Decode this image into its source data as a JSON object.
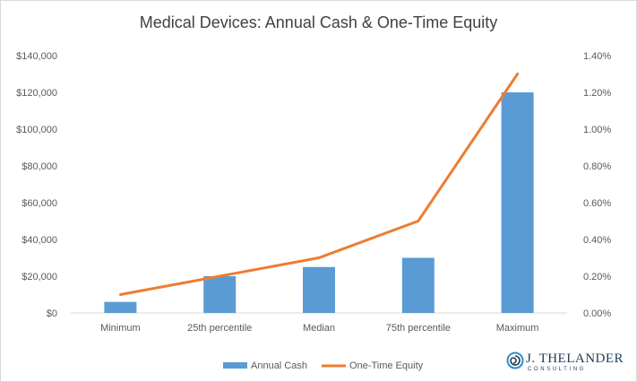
{
  "chart_data": {
    "type": "bar",
    "title": "Medical Devices: Annual Cash & One-Time Equity",
    "categories": [
      "Minimum",
      "25th percentile",
      "Median",
      "75th percentile",
      "Maximum"
    ],
    "series": [
      {
        "name": "Annual Cash",
        "type": "bar",
        "axis": "left",
        "color": "#5b9bd5",
        "values": [
          6000,
          20000,
          25000,
          30000,
          120000
        ]
      },
      {
        "name": "One-Time Equity",
        "type": "line",
        "axis": "right",
        "color": "#ed7d31",
        "values": [
          0.001,
          0.002,
          0.003,
          0.005,
          0.013
        ]
      }
    ],
    "y_left": {
      "min": 0,
      "max": 140000,
      "step": 20000,
      "tick_labels": [
        "$0",
        "$20,000",
        "$40,000",
        "$60,000",
        "$80,000",
        "$100,000",
        "$120,000",
        "$140,000"
      ]
    },
    "y_right": {
      "min": 0,
      "max": 0.014,
      "step": 0.002,
      "tick_labels": [
        "0.00%",
        "0.20%",
        "0.40%",
        "0.60%",
        "0.80%",
        "1.00%",
        "1.20%",
        "1.40%"
      ]
    },
    "xlabel": "",
    "ylabel": "",
    "grid": false,
    "legend_position": "bottom"
  },
  "logo": {
    "name": "J. THELANDER",
    "tagline": "CONSULTING",
    "icon": "spiral-icon",
    "color": "#1f3b57"
  }
}
